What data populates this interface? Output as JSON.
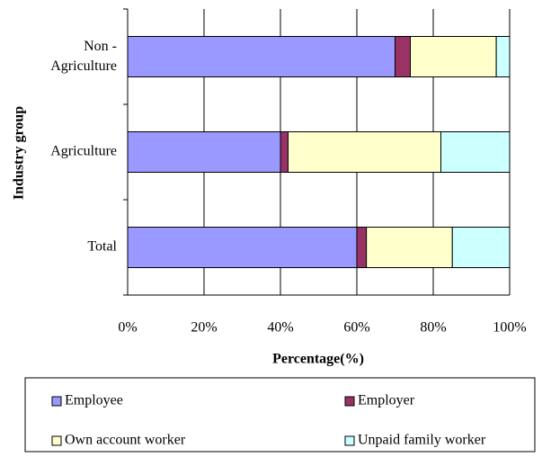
{
  "chart_data": {
    "type": "stacked_bar_horizontal",
    "categories": [
      "Non - Agriculture",
      "Agriculture",
      "Total"
    ],
    "series": [
      {
        "name": "Employee",
        "color": "#9999ff",
        "values": [
          70,
          40,
          60
        ]
      },
      {
        "name": "Employer",
        "color": "#993366",
        "values": [
          4,
          2,
          2.5
        ]
      },
      {
        "name": "Own account worker",
        "color": "#ffffcc",
        "values": [
          22.5,
          40,
          22.5
        ]
      },
      {
        "name": "Unpaid family worker",
        "color": "#ccffff",
        "values": [
          3.5,
          18,
          15
        ]
      }
    ],
    "xlim": [
      0,
      100
    ],
    "xticks": [
      {
        "value": 0,
        "label": "0%"
      },
      {
        "value": 20,
        "label": "20%"
      },
      {
        "value": 40,
        "label": "40%"
      },
      {
        "value": 60,
        "label": "60%"
      },
      {
        "value": 80,
        "label": "80%"
      },
      {
        "value": 100,
        "label": "100%"
      }
    ],
    "x_label": "Percentage(%)",
    "y_label": "Industry group",
    "grid": true,
    "legend": "bottom"
  }
}
